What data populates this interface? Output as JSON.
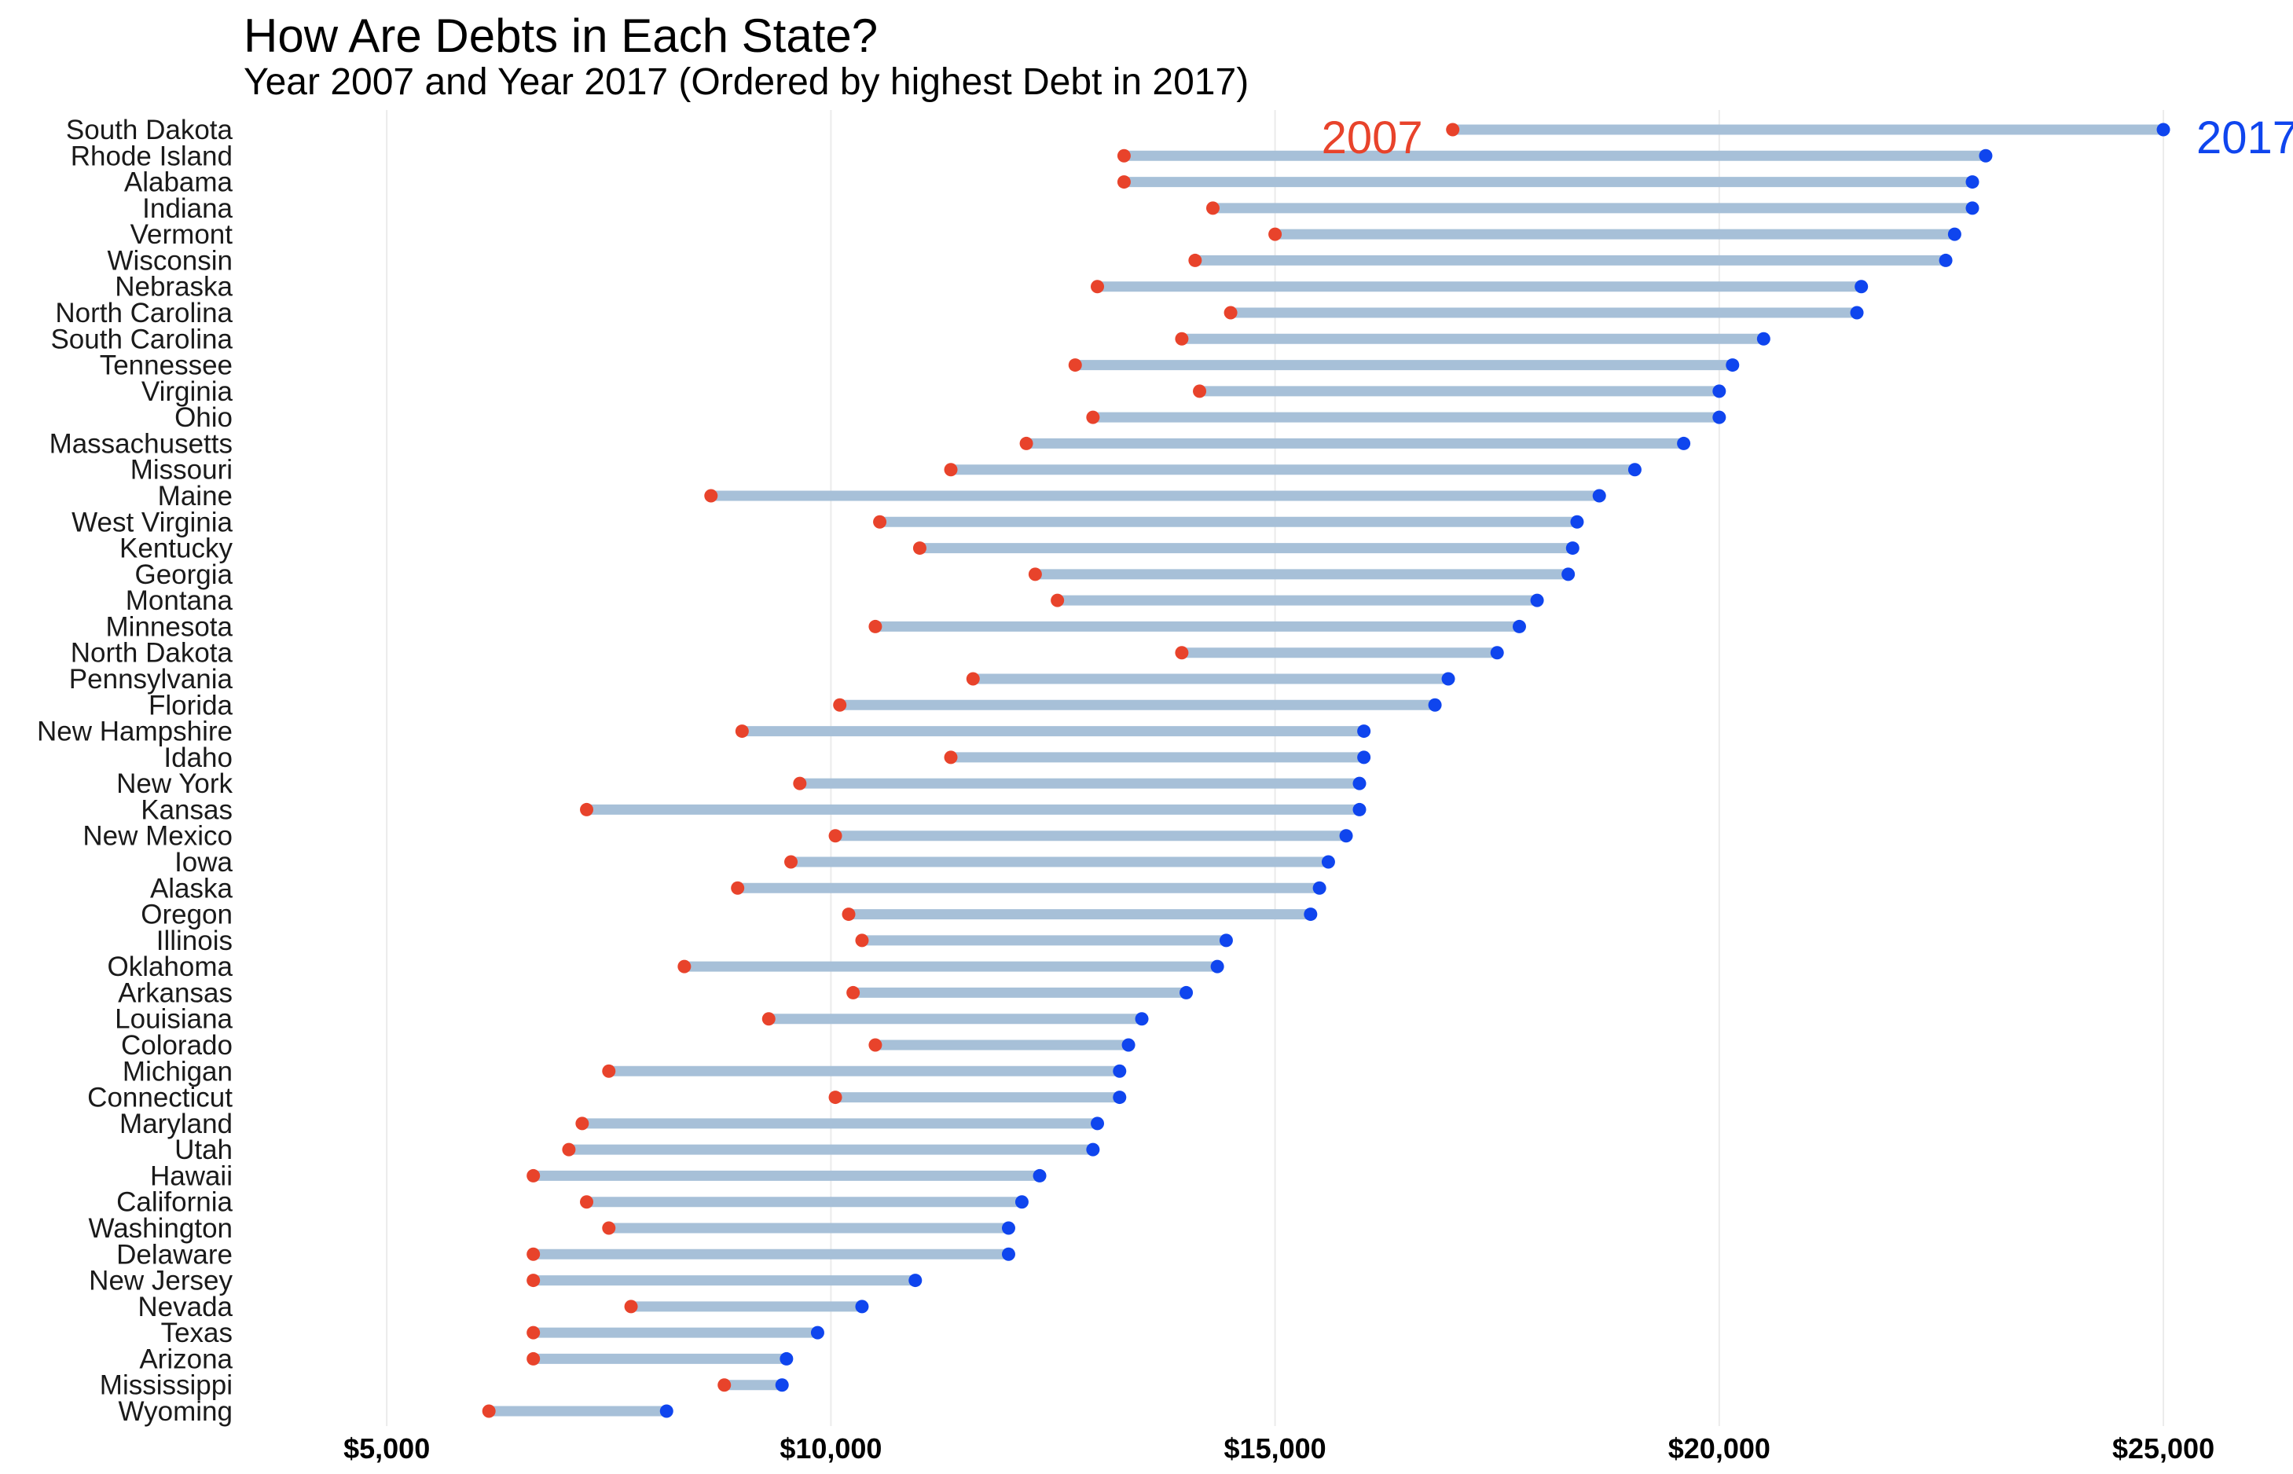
{
  "chart_data": {
    "type": "dumbbell",
    "title": "How Are Debts in Each State?",
    "subtitle": "Year 2007 and Year 2017 (Ordered by highest Debt in 2017)",
    "xlabel": "",
    "ylabel": "",
    "xlim": [
      3300,
      26300
    ],
    "x_ticks": [
      5000,
      10000,
      15000,
      20000,
      25000
    ],
    "x_tick_labels": [
      "$5,000",
      "$10,000",
      "$15,000",
      "$20,000",
      "$25,000"
    ],
    "grid": "vertical",
    "series": [
      {
        "name": "2007",
        "color": "#e8432b",
        "label_anchor": "left-of-point"
      },
      {
        "name": "2017",
        "color": "#0f45ee",
        "label_anchor": "right-of-point"
      }
    ],
    "segment_color": "#a7c0d8",
    "states": [
      {
        "state": "South Dakota",
        "y2007": 17000,
        "y2017": 25000
      },
      {
        "state": "Rhode Island",
        "y2007": 13300,
        "y2017": 23000
      },
      {
        "state": "Alabama",
        "y2007": 13300,
        "y2017": 22850
      },
      {
        "state": "Indiana",
        "y2007": 14300,
        "y2017": 22850
      },
      {
        "state": "Vermont",
        "y2007": 15000,
        "y2017": 22650
      },
      {
        "state": "Wisconsin",
        "y2007": 14100,
        "y2017": 22550
      },
      {
        "state": "Nebraska",
        "y2007": 13000,
        "y2017": 21600
      },
      {
        "state": "North Carolina",
        "y2007": 14500,
        "y2017": 21550
      },
      {
        "state": "South Carolina",
        "y2007": 13950,
        "y2017": 20500
      },
      {
        "state": "Tennessee",
        "y2007": 12750,
        "y2017": 20150
      },
      {
        "state": "Virginia",
        "y2007": 14150,
        "y2017": 20000
      },
      {
        "state": "Ohio",
        "y2007": 12950,
        "y2017": 20000
      },
      {
        "state": "Massachusetts",
        "y2007": 12200,
        "y2017": 19600
      },
      {
        "state": "Missouri",
        "y2007": 11350,
        "y2017": 19050
      },
      {
        "state": "Maine",
        "y2007": 8650,
        "y2017": 18650
      },
      {
        "state": "West Virginia",
        "y2007": 10550,
        "y2017": 18400
      },
      {
        "state": "Kentucky",
        "y2007": 11000,
        "y2017": 18350
      },
      {
        "state": "Georgia",
        "y2007": 12300,
        "y2017": 18300
      },
      {
        "state": "Montana",
        "y2007": 12550,
        "y2017": 17950
      },
      {
        "state": "Minnesota",
        "y2007": 10500,
        "y2017": 17750
      },
      {
        "state": "North Dakota",
        "y2007": 13950,
        "y2017": 17500
      },
      {
        "state": "Pennsylvania",
        "y2007": 11600,
        "y2017": 16950
      },
      {
        "state": "Florida",
        "y2007": 10100,
        "y2017": 16800
      },
      {
        "state": "New Hampshire",
        "y2007": 9000,
        "y2017": 16000
      },
      {
        "state": "Idaho",
        "y2007": 11350,
        "y2017": 16000
      },
      {
        "state": "New York",
        "y2007": 9650,
        "y2017": 15950
      },
      {
        "state": "Kansas",
        "y2007": 7250,
        "y2017": 15950
      },
      {
        "state": "New Mexico",
        "y2007": 10050,
        "y2017": 15800
      },
      {
        "state": "Iowa",
        "y2007": 9550,
        "y2017": 15600
      },
      {
        "state": "Alaska",
        "y2007": 8950,
        "y2017": 15500
      },
      {
        "state": "Oregon",
        "y2007": 10200,
        "y2017": 15400
      },
      {
        "state": "Illinois",
        "y2007": 10350,
        "y2017": 14450
      },
      {
        "state": "Oklahoma",
        "y2007": 8350,
        "y2017": 14350
      },
      {
        "state": "Arkansas",
        "y2007": 10250,
        "y2017": 14000
      },
      {
        "state": "Louisiana",
        "y2007": 9300,
        "y2017": 13500
      },
      {
        "state": "Colorado",
        "y2007": 10500,
        "y2017": 13350
      },
      {
        "state": "Michigan",
        "y2007": 7500,
        "y2017": 13250
      },
      {
        "state": "Connecticut",
        "y2007": 10050,
        "y2017": 13250
      },
      {
        "state": "Maryland",
        "y2007": 7200,
        "y2017": 13000
      },
      {
        "state": "Utah",
        "y2007": 7050,
        "y2017": 12950
      },
      {
        "state": "Hawaii",
        "y2007": 6650,
        "y2017": 12350
      },
      {
        "state": "California",
        "y2007": 7250,
        "y2017": 12150
      },
      {
        "state": "Washington",
        "y2007": 7500,
        "y2017": 12000
      },
      {
        "state": "Delaware",
        "y2007": 6650,
        "y2017": 12000
      },
      {
        "state": "New Jersey",
        "y2007": 6650,
        "y2017": 10950
      },
      {
        "state": "Nevada",
        "y2007": 7750,
        "y2017": 10350
      },
      {
        "state": "Texas",
        "y2007": 6650,
        "y2017": 9850
      },
      {
        "state": "Arizona",
        "y2007": 6650,
        "y2017": 9500
      },
      {
        "state": "Mississippi",
        "y2007": 8800,
        "y2017": 9450
      },
      {
        "state": "Wyoming",
        "y2007": 6150,
        "y2017": 8150
      }
    ]
  }
}
